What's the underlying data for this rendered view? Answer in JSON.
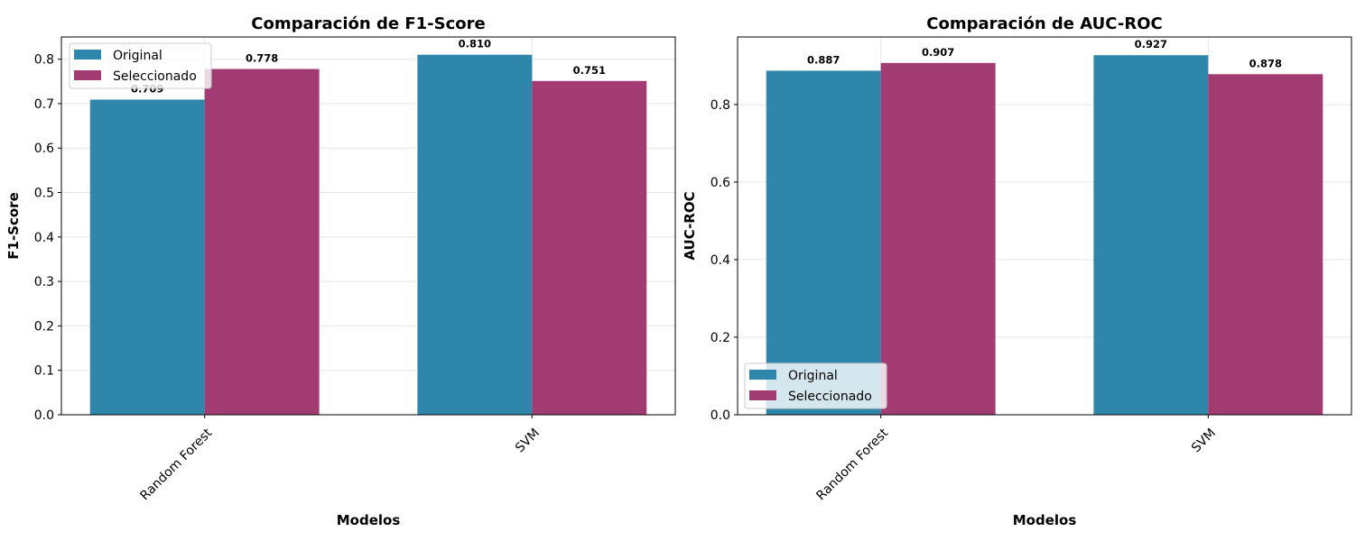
{
  "chart_data": [
    {
      "type": "bar",
      "title": "Comparación de F1-Score",
      "xlabel": "Modelos",
      "ylabel": "F1-Score",
      "categories": [
        "Random Forest",
        "SVM"
      ],
      "series": [
        {
          "name": "Original",
          "values": [
            0.709,
            0.81
          ],
          "labels": [
            "0.709",
            "0.810"
          ]
        },
        {
          "name": "Seleccionado",
          "values": [
            0.778,
            0.751
          ],
          "labels": [
            "0.778",
            "0.751"
          ]
        }
      ],
      "ylim": [
        0,
        0.85
      ],
      "yticks": [
        0.0,
        0.1,
        0.2,
        0.3,
        0.4,
        0.5,
        0.6,
        0.7,
        0.8
      ],
      "ytick_labels": [
        "0.0",
        "0.1",
        "0.2",
        "0.3",
        "0.4",
        "0.5",
        "0.6",
        "0.7",
        "0.8"
      ],
      "grid": true,
      "legend_position": "top-left",
      "colors": [
        "#2e86ab",
        "#a23b72"
      ]
    },
    {
      "type": "bar",
      "title": "Comparación de AUC-ROC",
      "xlabel": "Modelos",
      "ylabel": "AUC-ROC",
      "categories": [
        "Random Forest",
        "SVM"
      ],
      "series": [
        {
          "name": "Original",
          "values": [
            0.887,
            0.927
          ],
          "labels": [
            "0.887",
            "0.927"
          ]
        },
        {
          "name": "Seleccionado",
          "values": [
            0.907,
            0.878
          ],
          "labels": [
            "0.907",
            "0.878"
          ]
        }
      ],
      "ylim": [
        0,
        0.974
      ],
      "yticks": [
        0.0,
        0.2,
        0.4,
        0.6,
        0.8
      ],
      "ytick_labels": [
        "0.0",
        "0.2",
        "0.4",
        "0.6",
        "0.8"
      ],
      "grid": true,
      "legend_position": "bottom-left",
      "colors": [
        "#2e86ab",
        "#a23b72"
      ]
    }
  ]
}
